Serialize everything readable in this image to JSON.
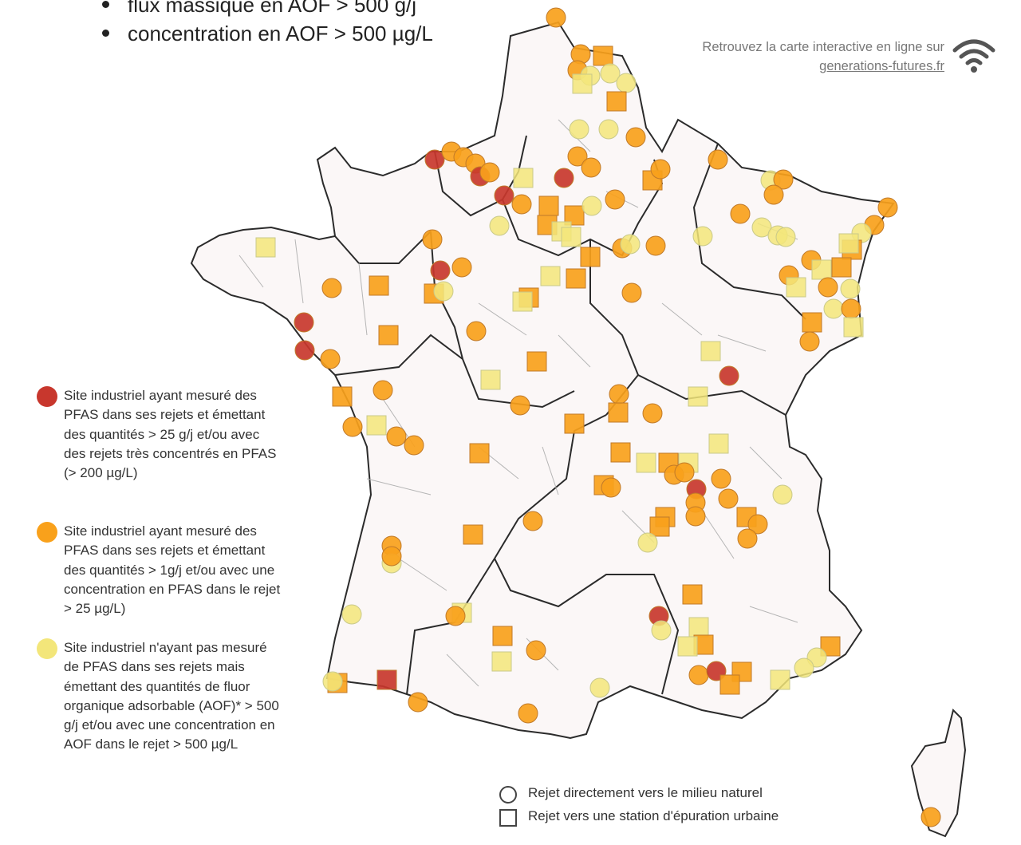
{
  "header_bullets": [
    "flux massique en AOF > 500 g/j",
    "concentration en AOF > 500 µg/L"
  ],
  "online_notice": {
    "text": "Retrouvez la carte interactive en ligne sur",
    "link": "generations-futures.fr",
    "icon": "wifi-icon"
  },
  "legend": [
    {
      "color": "#c8372d",
      "text": "Site industriel ayant mesuré des PFAS dans ses rejets et émettant des quantités > 25 g/j et/ou avec des rejets très concentrés en PFAS (> 200 µg/L)"
    },
    {
      "color": "#f9a11b",
      "text": "Site industriel ayant mesuré des PFAS dans ses rejets et émettant des quantités > 1g/j et/ou avec une concentration en PFAS dans le rejet > 25 µg/L)"
    },
    {
      "color": "#f3e67a",
      "text": "Site industriel n'ayant pas mesuré de PFAS dans ses rejets mais émettant des quantités de fluor organique adsorbable (AOF)* > 500 g/j et/ou avec une concentration en AOF dans le rejet > 500 µg/L"
    }
  ],
  "shape_legend": [
    {
      "shape": "circle",
      "text": "Rejet directement vers le milieu naturel"
    },
    {
      "shape": "square",
      "text": "Rejet vers une station d'épuration urbaine"
    }
  ],
  "colors": {
    "high": "#c8372d",
    "medium": "#f9a11b",
    "low": "#f3e67a",
    "land": "#fbf7f7",
    "region_border": "#2b2b2b",
    "dept_border": "#aaaaaa"
  }
}
